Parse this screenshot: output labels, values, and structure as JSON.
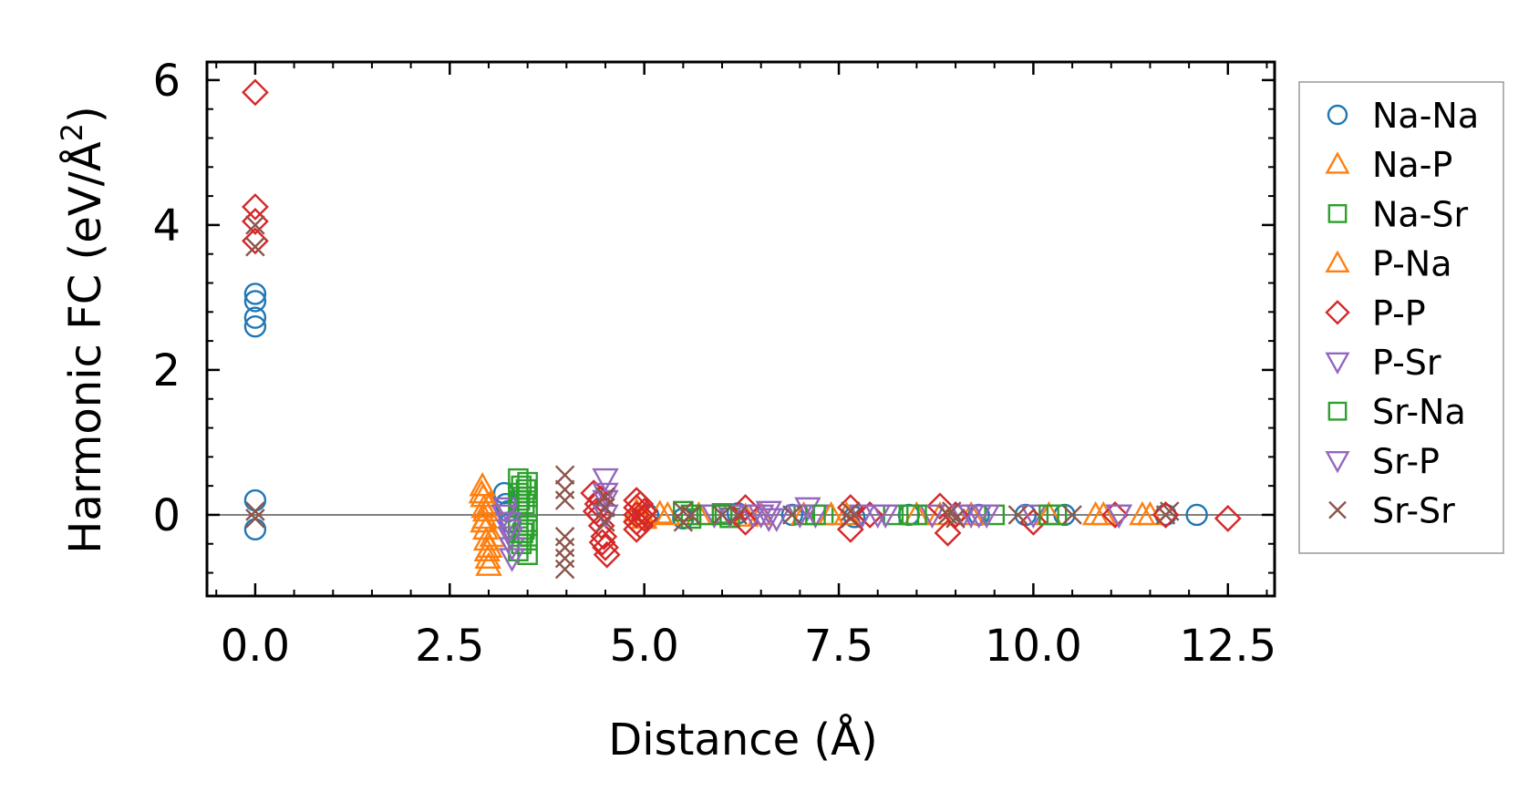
{
  "chart_data": {
    "type": "scatter",
    "title": "",
    "xlabel": "Distance (Å)",
    "ylabel": "Harmonic FC (eV/Å²)",
    "ylabel_prefix": "Harmonic FC (eV/Å",
    "ylabel_sup": "2",
    "ylabel_suffix": ")",
    "xlim": [
      -0.62,
      13.1
    ],
    "ylim": [
      -1.12,
      6.25
    ],
    "xticks": [
      0.0,
      2.5,
      5.0,
      7.5,
      10.0,
      12.5
    ],
    "xtick_labels": [
      "0.0",
      "2.5",
      "5.0",
      "7.5",
      "10.0",
      "12.5"
    ],
    "yticks": [
      0,
      2,
      4,
      6
    ],
    "ytick_labels": [
      "0",
      "2",
      "4",
      "6"
    ],
    "x_minor_step": 0.5,
    "y_minor_step": 0.4,
    "zero_line": true,
    "legend_position": "outside-right",
    "series": [
      {
        "name": "Na-Na",
        "marker": "circle",
        "color": "#1f77b4",
        "points": [
          [
            0,
            3.05
          ],
          [
            0,
            2.95
          ],
          [
            0,
            2.72
          ],
          [
            0,
            2.6
          ],
          [
            0,
            0.2
          ],
          [
            0,
            -0.2
          ],
          [
            3.2,
            0.3
          ],
          [
            3.22,
            0.15
          ],
          [
            3.25,
            0.05
          ],
          [
            3.28,
            -0.1
          ],
          [
            5.05,
            0
          ],
          [
            5.5,
            -0.05
          ],
          [
            6.2,
            0.02
          ],
          [
            6.9,
            0
          ],
          [
            7.7,
            -0.03
          ],
          [
            8.4,
            0
          ],
          [
            9.3,
            0
          ],
          [
            9.9,
            0
          ],
          [
            10.4,
            0
          ],
          [
            11.7,
            0
          ],
          [
            12.1,
            0
          ]
        ]
      },
      {
        "name": "Na-P",
        "marker": "triangle-up",
        "color": "#ff7f0e",
        "points": [
          [
            2.92,
            0.4
          ],
          [
            2.93,
            0.25
          ],
          [
            2.94,
            0.1
          ],
          [
            2.95,
            -0.05
          ],
          [
            2.96,
            -0.2
          ],
          [
            2.97,
            -0.35
          ],
          [
            2.98,
            -0.5
          ],
          [
            2.99,
            -0.6
          ],
          [
            3.0,
            -0.7
          ],
          [
            3.02,
            0.15
          ],
          [
            3.05,
            -0.3
          ],
          [
            4.9,
            0.05
          ],
          [
            5.0,
            -0.05
          ],
          [
            5.3,
            0
          ],
          [
            5.7,
            0
          ],
          [
            6.3,
            -0.02
          ],
          [
            7.05,
            0
          ],
          [
            7.6,
            0
          ],
          [
            8.5,
            0
          ],
          [
            9.2,
            0
          ],
          [
            10.2,
            0
          ],
          [
            10.8,
            0
          ],
          [
            11.4,
            0
          ]
        ]
      },
      {
        "name": "Na-Sr",
        "marker": "square",
        "color": "#2ca02c",
        "points": [
          [
            3.38,
            0.5
          ],
          [
            3.38,
            0.3
          ],
          [
            3.38,
            0.1
          ],
          [
            3.38,
            -0.1
          ],
          [
            3.38,
            -0.3
          ],
          [
            3.38,
            -0.5
          ],
          [
            3.5,
            0.45
          ],
          [
            3.5,
            0.25
          ],
          [
            3.5,
            0.05
          ],
          [
            3.5,
            -0.15
          ],
          [
            3.5,
            -0.35
          ],
          [
            3.5,
            -0.55
          ],
          [
            3.42,
            0.4
          ],
          [
            3.42,
            -0.4
          ],
          [
            3.46,
            0.15
          ],
          [
            3.46,
            -0.2
          ],
          [
            5.5,
            0.05
          ],
          [
            5.6,
            -0.05
          ],
          [
            5.8,
            0
          ],
          [
            6.0,
            0.02
          ],
          [
            6.1,
            -0.04
          ],
          [
            7.05,
            0
          ],
          [
            7.3,
            0
          ],
          [
            8.2,
            0
          ],
          [
            8.4,
            0
          ],
          [
            9.5,
            0
          ],
          [
            10.3,
            0
          ]
        ]
      },
      {
        "name": "P-Na",
        "marker": "triangle-up",
        "color": "#ff7f0e",
        "points": [
          [
            2.91,
            0.3
          ],
          [
            2.93,
            -0.1
          ],
          [
            2.96,
            0.05
          ],
          [
            3.01,
            -0.45
          ],
          [
            4.95,
            0
          ],
          [
            5.2,
            0.02
          ],
          [
            6.5,
            0
          ],
          [
            7.4,
            0
          ],
          [
            8.8,
            0
          ],
          [
            10.9,
            0
          ],
          [
            11.5,
            0
          ]
        ]
      },
      {
        "name": "P-P",
        "marker": "diamond",
        "color": "#d62728",
        "points": [
          [
            0,
            5.83
          ],
          [
            0,
            4.25
          ],
          [
            0,
            4.05
          ],
          [
            0,
            3.78
          ],
          [
            4.35,
            0.3
          ],
          [
            4.4,
            0.15
          ],
          [
            4.42,
            0
          ],
          [
            4.45,
            -0.15
          ],
          [
            4.48,
            -0.3
          ],
          [
            4.5,
            -0.45
          ],
          [
            4.52,
            -0.55
          ],
          [
            4.38,
            0.05
          ],
          [
            4.44,
            0.22
          ],
          [
            4.46,
            -0.38
          ],
          [
            4.9,
            0.2
          ],
          [
            4.9,
            0.1
          ],
          [
            4.9,
            0
          ],
          [
            4.9,
            -0.1
          ],
          [
            4.9,
            -0.2
          ],
          [
            4.95,
            0.15
          ],
          [
            4.95,
            -0.15
          ],
          [
            5.0,
            0.05
          ],
          [
            5.0,
            -0.05
          ],
          [
            6.3,
            0.1
          ],
          [
            6.3,
            -0.1
          ],
          [
            7.65,
            0.1
          ],
          [
            7.65,
            -0.2
          ],
          [
            7.9,
            0
          ],
          [
            8.8,
            0.12
          ],
          [
            8.9,
            -0.25
          ],
          [
            9.0,
            0
          ],
          [
            10.0,
            -0.1
          ],
          [
            11.05,
            0
          ],
          [
            11.7,
            0
          ],
          [
            12.5,
            -0.05
          ]
        ]
      },
      {
        "name": "P-Sr",
        "marker": "triangle-down",
        "color": "#9467bd",
        "points": [
          [
            3.22,
            0.1
          ],
          [
            3.25,
            -0.1
          ],
          [
            3.28,
            -0.3
          ],
          [
            3.3,
            -0.45
          ],
          [
            4.5,
            0.5
          ],
          [
            4.5,
            0.3
          ],
          [
            4.5,
            0
          ],
          [
            5.9,
            0
          ],
          [
            6.1,
            0
          ],
          [
            6.5,
            0
          ],
          [
            6.6,
            0.05
          ],
          [
            6.7,
            -0.05
          ],
          [
            7.1,
            0.1
          ],
          [
            7.2,
            0
          ],
          [
            7.8,
            0
          ],
          [
            8.0,
            0
          ],
          [
            8.7,
            0
          ],
          [
            9.2,
            0
          ],
          [
            9.4,
            0
          ],
          [
            10.0,
            0
          ],
          [
            11.1,
            0
          ]
        ]
      },
      {
        "name": "Sr-Na",
        "marker": "square",
        "color": "#2ca02c",
        "points": [
          [
            3.4,
            0.2
          ],
          [
            3.44,
            -0.25
          ],
          [
            3.48,
            0.35
          ],
          [
            5.6,
            0
          ],
          [
            6.0,
            0
          ],
          [
            7.2,
            0
          ],
          [
            8.5,
            0
          ],
          [
            10.2,
            0
          ]
        ]
      },
      {
        "name": "Sr-P",
        "marker": "triangle-down",
        "color": "#9467bd",
        "points": [
          [
            3.2,
            0
          ],
          [
            3.26,
            -0.2
          ],
          [
            3.3,
            -0.6
          ],
          [
            4.5,
            0.2
          ],
          [
            6.4,
            0
          ],
          [
            6.6,
            -0.05
          ],
          [
            7.0,
            0
          ],
          [
            8.1,
            0
          ],
          [
            9.1,
            0
          ],
          [
            9.3,
            0
          ],
          [
            11.1,
            0
          ]
        ]
      },
      {
        "name": "Sr-Sr",
        "marker": "x",
        "color": "#8c564b",
        "points": [
          [
            0,
            4.0
          ],
          [
            0,
            3.7
          ],
          [
            0,
            0.05
          ],
          [
            0,
            -0.05
          ],
          [
            3.98,
            0.55
          ],
          [
            3.98,
            0.35
          ],
          [
            3.98,
            0.2
          ],
          [
            3.98,
            -0.3
          ],
          [
            3.98,
            -0.45
          ],
          [
            3.98,
            -0.6
          ],
          [
            3.98,
            -0.75
          ],
          [
            4.5,
            0.25
          ],
          [
            4.5,
            0.1
          ],
          [
            4.5,
            -0.1
          ],
          [
            5.5,
            0.05
          ],
          [
            5.5,
            -0.1
          ],
          [
            5.6,
            0
          ],
          [
            6.0,
            0
          ],
          [
            6.2,
            0
          ],
          [
            6.9,
            0
          ],
          [
            7.65,
            0.05
          ],
          [
            7.65,
            -0.05
          ],
          [
            8.9,
            0
          ],
          [
            8.95,
            0.05
          ],
          [
            9.0,
            -0.05
          ],
          [
            9.8,
            0
          ],
          [
            10.5,
            0
          ],
          [
            11.7,
            0
          ],
          [
            11.75,
            0.05
          ]
        ]
      }
    ]
  }
}
